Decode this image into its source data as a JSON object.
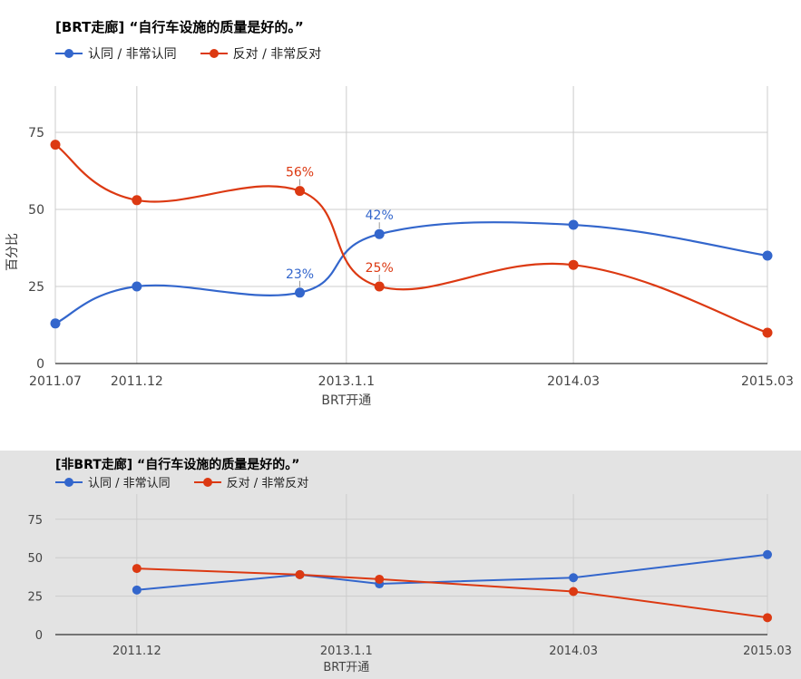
{
  "colors": {
    "approve": "#3366cc",
    "oppose": "#dc3912",
    "grid": "#cccccc",
    "axis": "#333333"
  },
  "chart_data": [
    {
      "type": "line",
      "title": "[BRT走廊] “自行车设施的质量是好的。”",
      "ylabel": "百分比",
      "xlabel": "",
      "ylim": [
        0,
        90
      ],
      "yticks": [
        0,
        25,
        50,
        75
      ],
      "x_range": [
        2011.5,
        2015.17
      ],
      "x_ticks": [
        {
          "x": 2011.5,
          "label": "2011.07",
          "sublabel": ""
        },
        {
          "x": 2011.92,
          "label": "2011.12",
          "sublabel": ""
        },
        {
          "x": 2013.0,
          "label": "2013.1.1",
          "sublabel": "BRT开通"
        },
        {
          "x": 2014.17,
          "label": "2014.03",
          "sublabel": ""
        },
        {
          "x": 2015.17,
          "label": "2015.03",
          "sublabel": ""
        }
      ],
      "series": [
        {
          "name": "认同 / 非常认同",
          "color": "#3366cc",
          "x": [
            2011.5,
            2011.92,
            2012.76,
            2013.17,
            2014.17,
            2015.17
          ],
          "values": [
            13,
            25,
            23,
            42,
            45,
            35
          ],
          "annotations": [
            {
              "index": 2,
              "label": "23%"
            },
            {
              "index": 3,
              "label": "42%"
            }
          ]
        },
        {
          "name": "反对 / 非常反对",
          "color": "#dc3912",
          "x": [
            2011.5,
            2011.92,
            2012.76,
            2013.17,
            2014.17,
            2015.17
          ],
          "values": [
            71,
            53,
            56,
            25,
            32,
            10
          ],
          "annotations": [
            {
              "index": 2,
              "label": "56%"
            },
            {
              "index": 3,
              "label": "25%"
            }
          ]
        }
      ],
      "grid": true,
      "legend": "top-left"
    },
    {
      "type": "line",
      "title": "[非BRT走廊] “自行车设施的质量是好的。”",
      "ylabel": "",
      "xlabel": "",
      "ylim": [
        0,
        90
      ],
      "yticks": [
        0,
        25,
        50,
        75
      ],
      "x_range": [
        2011.5,
        2015.17
      ],
      "x_ticks": [
        {
          "x": 2011.92,
          "label": "2011.12",
          "sublabel": ""
        },
        {
          "x": 2013.0,
          "label": "2013.1.1",
          "sublabel": "BRT开通"
        },
        {
          "x": 2014.17,
          "label": "2014.03",
          "sublabel": ""
        },
        {
          "x": 2015.17,
          "label": "2015.03",
          "sublabel": ""
        }
      ],
      "series": [
        {
          "name": "认同 / 非常认同",
          "color": "#3366cc",
          "x": [
            2011.92,
            2012.76,
            2013.17,
            2014.17,
            2015.17
          ],
          "values": [
            29,
            39,
            33,
            37,
            52
          ],
          "annotations": []
        },
        {
          "name": "反对 / 非常反对",
          "color": "#dc3912",
          "x": [
            2011.92,
            2012.76,
            2013.17,
            2014.17,
            2015.17
          ],
          "values": [
            43,
            39,
            36,
            28,
            11
          ],
          "annotations": []
        }
      ],
      "grid": true,
      "legend": "top-left"
    }
  ]
}
